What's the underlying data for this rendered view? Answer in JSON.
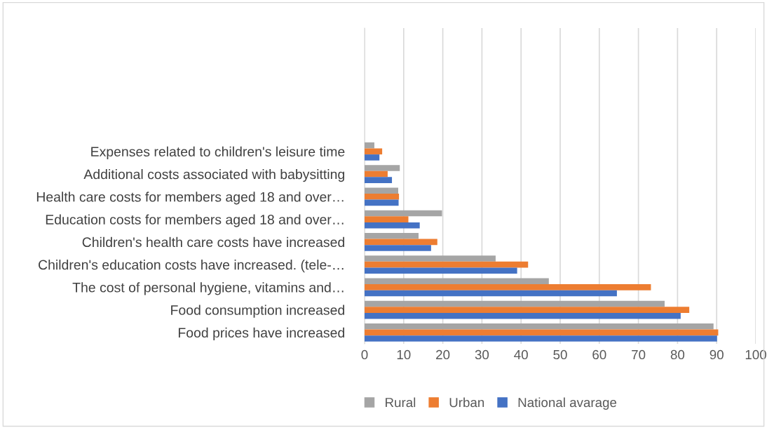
{
  "chart_data": {
    "type": "bar",
    "orientation": "horizontal",
    "categories": [
      "Expenses related to children's leisure time",
      "Additional costs associated with babysitting",
      "Health care costs for members aged 18 and over…",
      "Education costs for members aged 18 and over…",
      "Children's health care costs have increased",
      "Children's education costs have increased. (tele-…",
      "The cost of personal hygiene, vitamins and…",
      "Food consumption increased",
      "Food prices have increased"
    ],
    "series": [
      {
        "name": "Rural",
        "color": "#a5a5a5",
        "values": [
          2.5,
          9.0,
          8.6,
          19.8,
          13.8,
          33.5,
          47.1,
          76.7,
          89.2
        ]
      },
      {
        "name": "Urban",
        "color": "#ed7d31",
        "values": [
          4.5,
          5.9,
          8.8,
          11.2,
          18.6,
          41.8,
          73.2,
          83.0,
          90.4
        ]
      },
      {
        "name": "National avarage",
        "color": "#4472c4",
        "values": [
          3.8,
          7.0,
          8.7,
          14.1,
          17.0,
          39.0,
          64.5,
          80.8,
          90.1
        ]
      }
    ],
    "xlim": [
      0,
      100
    ],
    "xticks": [
      0,
      10,
      20,
      30,
      40,
      50,
      60,
      70,
      80,
      90,
      100
    ],
    "grid": "x",
    "legend": "bottom"
  }
}
